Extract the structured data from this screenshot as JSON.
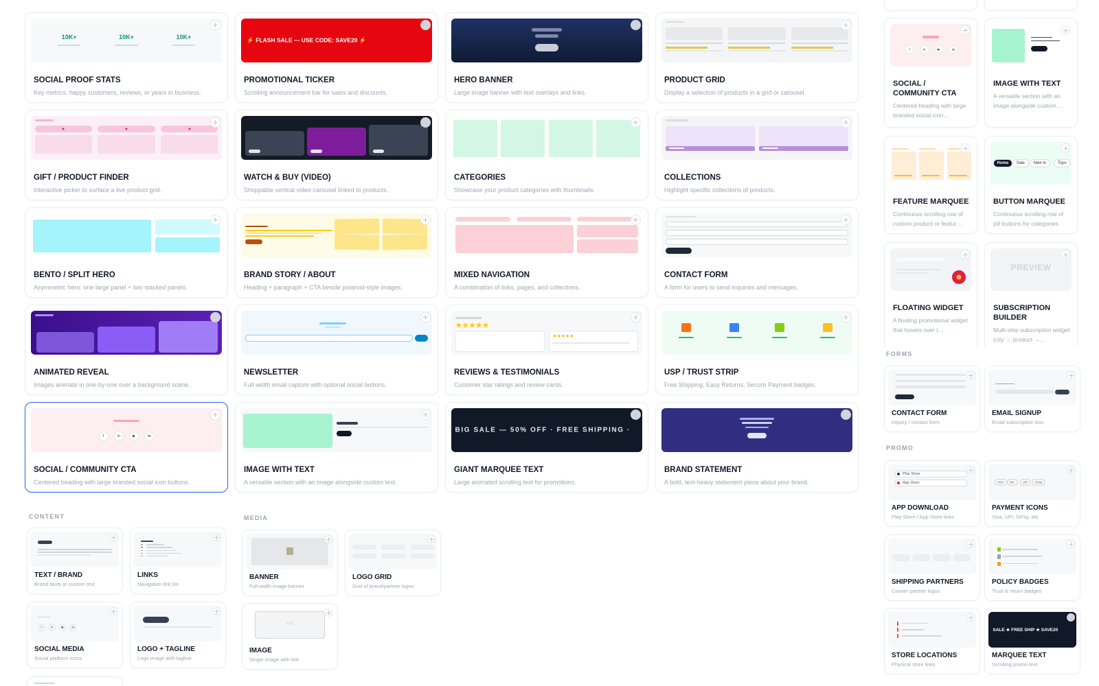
{
  "featured": [
    {
      "title": "SOCIAL PROOF STATS",
      "description": "Key metrics: happy customers, reviews, or years in business.",
      "preview": [
        "10K+",
        "10K+",
        "10K+"
      ]
    },
    {
      "title": "PROMOTIONAL TICKER",
      "description": "Scrolling announcement bar for sales and discounts.",
      "preview": [
        "⚡ FLASH SALE — USE CODE: SAVE20 ⚡"
      ]
    },
    {
      "title": "HERO BANNER",
      "description": "Large image banner with text overlays and links."
    },
    {
      "title": "PRODUCT GRID",
      "description": "Display a selection of products in a grid or carousel."
    },
    {
      "title": "GIFT / PRODUCT FINDER",
      "description": "Interactive picker to surface a live product grid."
    },
    {
      "title": "WATCH & BUY (VIDEO)",
      "description": "Shoppable vertical video carousel linked to products."
    },
    {
      "title": "CATEGORIES",
      "description": "Showcase your product categories with thumbnails."
    },
    {
      "title": "COLLECTIONS",
      "description": "Highlight specific collections of products."
    },
    {
      "title": "BENTO / SPLIT HERO",
      "description": "Asymmetric hero: one large panel + two stacked panels."
    },
    {
      "title": "BRAND STORY / ABOUT",
      "description": "Heading + paragraph + CTA beside polaroid-style images."
    },
    {
      "title": "MIXED NAVIGATION",
      "description": "A combination of links, pages, and collections."
    },
    {
      "title": "CONTACT FORM",
      "description": "A form for users to send inquiries and messages."
    },
    {
      "title": "ANIMATED REVEAL",
      "description": "Images animate in one-by-one over a background scene."
    },
    {
      "title": "NEWSLETTER",
      "description": "Full-width email capture with optional social buttons."
    },
    {
      "title": "REVIEWS & TESTIMONIALS",
      "description": "Customer star ratings and review cards.",
      "preview": [
        "★★★★★",
        "★★★★★"
      ]
    },
    {
      "title": "USP / TRUST STRIP",
      "description": "Free Shipping, Easy Returns, Secure Payment badges."
    },
    {
      "title": "SOCIAL / COMMUNITY CTA",
      "description": "Centered heading with large branded social icon buttons.",
      "preview": [
        "f",
        "in",
        "▶",
        "tw"
      ]
    },
    {
      "title": "IMAGE WITH TEXT",
      "description": "A versatile section with an image alongside custom text."
    },
    {
      "title": "GIANT MARQUEE TEXT",
      "description": "Large animated scrolling text for promotions.",
      "preview": [
        "BIG SALE — 50% OFF · FREE SHIPPING ·"
      ]
    },
    {
      "title": "BRAND STATEMENT",
      "description": "A bold, text-heavy statement piece about your brand."
    }
  ],
  "sidebar": [
    {
      "title": "SOCIAL / COMMUNITY CTA",
      "description": "Centered heading with large branded social icon…",
      "preview": [
        "f",
        "in",
        "▶",
        "tw"
      ]
    },
    {
      "title": "IMAGE WITH TEXT",
      "description": "A versatile section with an image alongside custom…"
    },
    {
      "title": "FEATURE MARQUEE",
      "description": "Continuous scrolling row of custom product or featur…"
    },
    {
      "title": "BUTTON MARQUEE",
      "description": "Continuous scrolling row of pill buttons for categories.",
      "preview": [
        "Home",
        "Sale",
        "New In",
        "Tops"
      ]
    },
    {
      "title": "FLOATING WIDGET",
      "description": "A floating promotional widget that hovers over t…"
    },
    {
      "title": "SUBSCRIPTION BUILDER",
      "description": "Multi-step subscription widget (city → product →…",
      "preview": [
        "PREVIEW"
      ]
    }
  ],
  "sections": [
    {
      "label": "FORMS",
      "cards": [
        {
          "title": "CONTACT FORM",
          "description": "Inquiry / contact form"
        },
        {
          "title": "EMAIL SIGNUP",
          "description": "Email subscription box"
        }
      ]
    },
    {
      "label": "PROMO",
      "cards": [
        {
          "title": "APP DOWNLOAD",
          "description": "Play Store / App Store links",
          "preview": [
            "Play Store",
            "App Store"
          ]
        },
        {
          "title": "PAYMENT ICONS",
          "description": "Visa, UPI, GPay, etc.",
          "preview": [
            "VISA",
            "MC",
            "UPI",
            "GPay"
          ]
        },
        {
          "title": "SHIPPING PARTNERS",
          "description": "Courier partner logos"
        },
        {
          "title": "POLICY BADGES",
          "description": "Trust & return badges"
        },
        {
          "title": "STORE LOCATIONS",
          "description": "Physical store links"
        },
        {
          "title": "MARQUEE TEXT",
          "description": "Scrolling promo text",
          "preview": [
            "SALE ★ FREE SHIP ★ SAVE20"
          ]
        }
      ]
    },
    {
      "label": "CONTENT",
      "cards": [
        {
          "title": "TEXT / BRAND",
          "description": "Brand blurb or custom text"
        },
        {
          "title": "LINKS",
          "description": "Navigation link list"
        },
        {
          "title": "SOCIAL MEDIA",
          "description": "Social platform icons",
          "preview": [
            "f",
            "in",
            "▶",
            "tw"
          ]
        },
        {
          "title": "LOGO + TAGLINE",
          "description": "Logo image with tagline"
        }
      ]
    },
    {
      "label": "MEDIA",
      "cards": [
        {
          "title": "BANNER",
          "description": "Full-width image banner"
        },
        {
          "title": "LOGO GRID",
          "description": "Grid of brand/partner logos"
        },
        {
          "title": "IMAGE",
          "description": "Single image with link",
          "preview": [
            "IMG"
          ]
        }
      ]
    }
  ]
}
